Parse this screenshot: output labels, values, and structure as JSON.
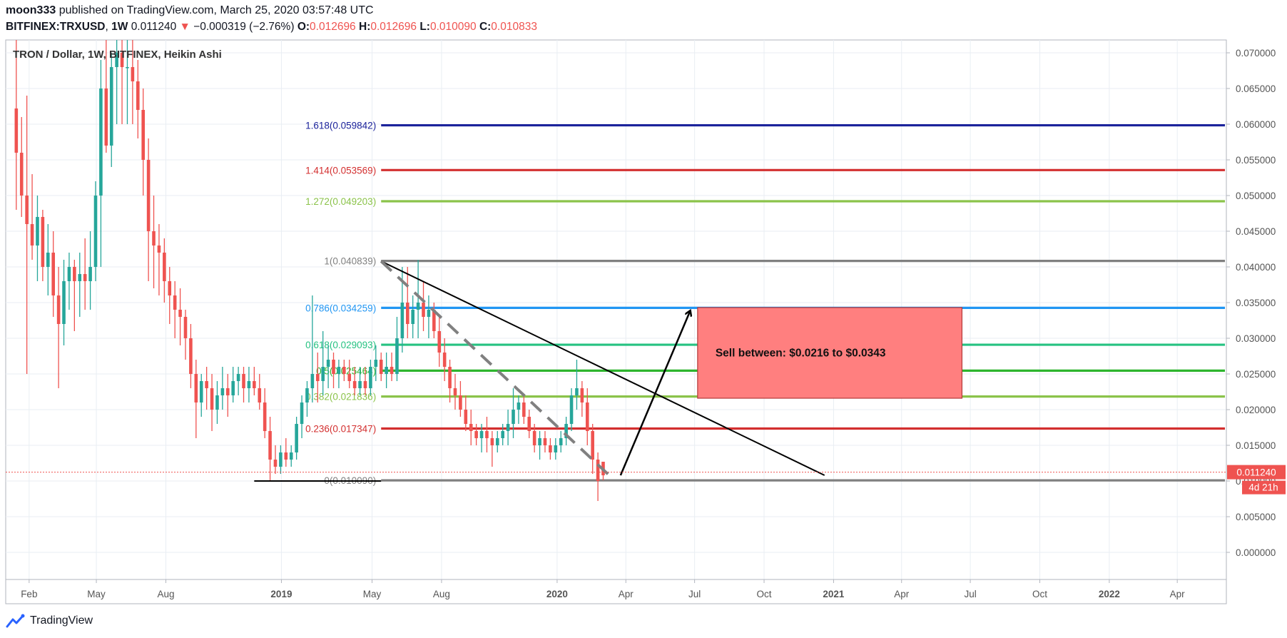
{
  "header": {
    "author": "moon333",
    "published_text": "published on TradingView.com, March 25, 2020 03:57:48 UTC",
    "symbol": "BITFINEX:TRXUSD",
    "interval": "1W",
    "last": "0.011240",
    "change_arrow": "▼",
    "change": "−0.000319 (−2.76%)",
    "o_label": "O:",
    "o": "0.012696",
    "h_label": "H:",
    "h": "0.012696",
    "l_label": "L:",
    "l": "0.010090",
    "c_label": "C:",
    "c": "0.010833"
  },
  "chart_title": "TRON / Dollar, 1W, BITFINEX, Heikin Ashi",
  "footer": {
    "brand": "TradingView"
  },
  "colors": {
    "up": "#26a69a",
    "down": "#ef5350",
    "grid": "#e9eef3",
    "axis_text": "#555555",
    "zone_fill": "#ff7f7f"
  },
  "chart_data": {
    "type": "candlestick",
    "title": "TRON / Dollar, 1W, BITFINEX, Heikin Ashi",
    "x_axis": {
      "start": "2018-01-01",
      "end": "2022-06-05",
      "ticks": [
        {
          "label": "Feb",
          "date": "2018-02-01",
          "bold": false
        },
        {
          "label": "May",
          "date": "2018-05-01",
          "bold": false
        },
        {
          "label": "Aug",
          "date": "2018-08-01",
          "bold": false
        },
        {
          "label": "2019",
          "date": "2019-01-01",
          "bold": true
        },
        {
          "label": "May",
          "date": "2019-05-01",
          "bold": false
        },
        {
          "label": "Aug",
          "date": "2019-08-01",
          "bold": false
        },
        {
          "label": "2020",
          "date": "2020-01-01",
          "bold": true
        },
        {
          "label": "Apr",
          "date": "2020-04-01",
          "bold": false
        },
        {
          "label": "Jul",
          "date": "2020-07-01",
          "bold": false
        },
        {
          "label": "Oct",
          "date": "2020-10-01",
          "bold": false
        },
        {
          "label": "2021",
          "date": "2021-01-01",
          "bold": true
        },
        {
          "label": "Apr",
          "date": "2021-04-01",
          "bold": false
        },
        {
          "label": "Jul",
          "date": "2021-07-01",
          "bold": false
        },
        {
          "label": "Oct",
          "date": "2021-10-01",
          "bold": false
        },
        {
          "label": "2022",
          "date": "2022-01-01",
          "bold": true
        },
        {
          "label": "Apr",
          "date": "2022-04-01",
          "bold": false
        }
      ]
    },
    "y_axis": {
      "range": [
        -0.0038,
        0.0718
      ],
      "ticks": [
        "0.070000",
        "0.065000",
        "0.060000",
        "0.055000",
        "0.050000",
        "0.045000",
        "0.040000",
        "0.035000",
        "0.030000",
        "0.025000",
        "0.020000",
        "0.015000",
        "0.010000",
        "0.005000",
        "0.000000"
      ]
    },
    "current_price": {
      "value": 0.01124,
      "label": "0.011240",
      "countdown": "4d 21h"
    },
    "grid": true,
    "first_candle_date": "2018-01-15",
    "candles": [
      [
        0.0622,
        0.072,
        0.048,
        0.056
      ],
      [
        0.056,
        0.061,
        0.047,
        0.05
      ],
      [
        0.05,
        0.064,
        0.025,
        0.046
      ],
      [
        0.046,
        0.053,
        0.041,
        0.043
      ],
      [
        0.043,
        0.05,
        0.038,
        0.047
      ],
      [
        0.047,
        0.048,
        0.038,
        0.04
      ],
      [
        0.04,
        0.046,
        0.036,
        0.042
      ],
      [
        0.042,
        0.045,
        0.033,
        0.036
      ],
      [
        0.036,
        0.04,
        0.023,
        0.032
      ],
      [
        0.032,
        0.041,
        0.029,
        0.038
      ],
      [
        0.038,
        0.042,
        0.034,
        0.04
      ],
      [
        0.04,
        0.041,
        0.031,
        0.038
      ],
      [
        0.038,
        0.042,
        0.033,
        0.039
      ],
      [
        0.039,
        0.044,
        0.034,
        0.038
      ],
      [
        0.038,
        0.045,
        0.034,
        0.04
      ],
      [
        0.04,
        0.052,
        0.038,
        0.05
      ],
      [
        0.05,
        0.069,
        0.04,
        0.065
      ],
      [
        0.065,
        0.072,
        0.056,
        0.057
      ],
      [
        0.057,
        0.07,
        0.054,
        0.068
      ],
      [
        0.068,
        0.072,
        0.06,
        0.07
      ],
      [
        0.07,
        0.072,
        0.06,
        0.068
      ],
      [
        0.068,
        0.072,
        0.06,
        0.068
      ],
      [
        0.068,
        0.072,
        0.06,
        0.066
      ],
      [
        0.066,
        0.069,
        0.058,
        0.062
      ],
      [
        0.062,
        0.065,
        0.05,
        0.055
      ],
      [
        0.055,
        0.058,
        0.038,
        0.045
      ],
      [
        0.045,
        0.05,
        0.037,
        0.043
      ],
      [
        0.043,
        0.046,
        0.036,
        0.042
      ],
      [
        0.042,
        0.044,
        0.035,
        0.038
      ],
      [
        0.038,
        0.04,
        0.032,
        0.036
      ],
      [
        0.036,
        0.038,
        0.03,
        0.034
      ],
      [
        0.034,
        0.037,
        0.029,
        0.033
      ],
      [
        0.033,
        0.034,
        0.027,
        0.03
      ],
      [
        0.03,
        0.032,
        0.023,
        0.025
      ],
      [
        0.025,
        0.027,
        0.016,
        0.021
      ],
      [
        0.021,
        0.025,
        0.019,
        0.024
      ],
      [
        0.024,
        0.026,
        0.02,
        0.023
      ],
      [
        0.023,
        0.025,
        0.017,
        0.02
      ],
      [
        0.02,
        0.024,
        0.018,
        0.022
      ],
      [
        0.022,
        0.026,
        0.02,
        0.023
      ],
      [
        0.023,
        0.025,
        0.019,
        0.022
      ],
      [
        0.022,
        0.026,
        0.021,
        0.024
      ],
      [
        0.024,
        0.026,
        0.022,
        0.025
      ],
      [
        0.025,
        0.026,
        0.021,
        0.023
      ],
      [
        0.023,
        0.026,
        0.021,
        0.024
      ],
      [
        0.024,
        0.026,
        0.022,
        0.023
      ],
      [
        0.023,
        0.025,
        0.02,
        0.021
      ],
      [
        0.021,
        0.023,
        0.016,
        0.017
      ],
      [
        0.017,
        0.019,
        0.01,
        0.013
      ],
      [
        0.013,
        0.015,
        0.011,
        0.012
      ],
      [
        0.012,
        0.015,
        0.011,
        0.014
      ],
      [
        0.014,
        0.016,
        0.012,
        0.013
      ],
      [
        0.013,
        0.015,
        0.012,
        0.014
      ],
      [
        0.014,
        0.019,
        0.013,
        0.018
      ],
      [
        0.018,
        0.022,
        0.016,
        0.021
      ],
      [
        0.021,
        0.024,
        0.019,
        0.023
      ],
      [
        0.023,
        0.036,
        0.021,
        0.025
      ],
      [
        0.025,
        0.028,
        0.021,
        0.024
      ],
      [
        0.024,
        0.031,
        0.022,
        0.026
      ],
      [
        0.026,
        0.029,
        0.023,
        0.027
      ],
      [
        0.027,
        0.028,
        0.023,
        0.025
      ],
      [
        0.025,
        0.027,
        0.023,
        0.026
      ],
      [
        0.026,
        0.027,
        0.024,
        0.025
      ],
      [
        0.025,
        0.027,
        0.023,
        0.024
      ],
      [
        0.024,
        0.026,
        0.022,
        0.023
      ],
      [
        0.023,
        0.026,
        0.022,
        0.024
      ],
      [
        0.024,
        0.026,
        0.022,
        0.023
      ],
      [
        0.023,
        0.027,
        0.022,
        0.026
      ],
      [
        0.026,
        0.029,
        0.024,
        0.027
      ],
      [
        0.027,
        0.028,
        0.024,
        0.025
      ],
      [
        0.025,
        0.028,
        0.023,
        0.026
      ],
      [
        0.026,
        0.028,
        0.024,
        0.025
      ],
      [
        0.025,
        0.033,
        0.024,
        0.03
      ],
      [
        0.03,
        0.04,
        0.028,
        0.035
      ],
      [
        0.035,
        0.04,
        0.03,
        0.032
      ],
      [
        0.032,
        0.036,
        0.03,
        0.034
      ],
      [
        0.034,
        0.041,
        0.03,
        0.035
      ],
      [
        0.035,
        0.038,
        0.031,
        0.033
      ],
      [
        0.033,
        0.036,
        0.03,
        0.034
      ],
      [
        0.034,
        0.035,
        0.03,
        0.031
      ],
      [
        0.031,
        0.033,
        0.026,
        0.028
      ],
      [
        0.028,
        0.03,
        0.024,
        0.026
      ],
      [
        0.026,
        0.027,
        0.021,
        0.023
      ],
      [
        0.023,
        0.025,
        0.02,
        0.022
      ],
      [
        0.022,
        0.024,
        0.019,
        0.02
      ],
      [
        0.02,
        0.022,
        0.017,
        0.018
      ],
      [
        0.018,
        0.02,
        0.015,
        0.017
      ],
      [
        0.017,
        0.018,
        0.015,
        0.016
      ],
      [
        0.016,
        0.018,
        0.014,
        0.017
      ],
      [
        0.017,
        0.019,
        0.014,
        0.016
      ],
      [
        0.016,
        0.017,
        0.012,
        0.015
      ],
      [
        0.015,
        0.017,
        0.014,
        0.016
      ],
      [
        0.016,
        0.018,
        0.015,
        0.017
      ],
      [
        0.017,
        0.02,
        0.015,
        0.018
      ],
      [
        0.018,
        0.023,
        0.016,
        0.02
      ],
      [
        0.02,
        0.022,
        0.018,
        0.021
      ],
      [
        0.021,
        0.022,
        0.018,
        0.019
      ],
      [
        0.019,
        0.02,
        0.016,
        0.017
      ],
      [
        0.017,
        0.018,
        0.014,
        0.015
      ],
      [
        0.015,
        0.017,
        0.013,
        0.016
      ],
      [
        0.016,
        0.017,
        0.014,
        0.015
      ],
      [
        0.015,
        0.016,
        0.013,
        0.014
      ],
      [
        0.014,
        0.016,
        0.013,
        0.015
      ],
      [
        0.015,
        0.017,
        0.014,
        0.016
      ],
      [
        0.016,
        0.019,
        0.015,
        0.018
      ],
      [
        0.018,
        0.023,
        0.017,
        0.022
      ],
      [
        0.022,
        0.027,
        0.02,
        0.023
      ],
      [
        0.023,
        0.024,
        0.019,
        0.021
      ],
      [
        0.021,
        0.023,
        0.015,
        0.017
      ],
      [
        0.017,
        0.018,
        0.011,
        0.013
      ],
      [
        0.013,
        0.014,
        0.0072,
        0.01
      ],
      [
        0.0127,
        0.0127,
        0.0101,
        0.0108
      ]
    ],
    "fib_levels": [
      {
        "ratio": "1.618",
        "label": "1.618(0.059842)",
        "value": 0.059842,
        "color": "#1c239b"
      },
      {
        "ratio": "1.414",
        "label": "1.414(0.053569)",
        "value": 0.053569,
        "color": "#d32f2f"
      },
      {
        "ratio": "1.272",
        "label": "1.272(0.049203)",
        "value": 0.049203,
        "color": "#8bc34a"
      },
      {
        "ratio": "1",
        "label": "1(0.040839)",
        "value": 0.040839,
        "color": "#808080"
      },
      {
        "ratio": "0.786",
        "label": "0.786(0.034259)",
        "value": 0.034259,
        "color": "#2196f3"
      },
      {
        "ratio": "0.618",
        "label": "0.618(0.029093)",
        "value": 0.029093,
        "color": "#26c281"
      },
      {
        "ratio": "0.5",
        "label": "0.5(0.025464)",
        "value": 0.025464,
        "color": "#2db52d"
      },
      {
        "ratio": "0.382",
        "label": "0.382(0.021836)",
        "value": 0.021836,
        "color": "#8bc34a"
      },
      {
        "ratio": "0.236",
        "label": "0.236(0.017347)",
        "value": 0.017347,
        "color": "#d32f2f"
      },
      {
        "ratio": "0",
        "label": "0(0.010090)",
        "value": 0.01009,
        "color": "#808080"
      }
    ],
    "fib_start_date": "2019-05-13",
    "annotations": {
      "sell_zone": {
        "text": "Sell between: $0.0216 to $0.0343",
        "from_date": "2020-07-05",
        "to_date": "2021-06-20",
        "low": 0.0216,
        "high": 0.0343
      },
      "trend_line": {
        "from": [
          "2019-05-13",
          0.0408
        ],
        "to": [
          "2020-12-20",
          0.0108
        ]
      },
      "dashed_line": {
        "from": [
          "2019-05-13",
          0.0408
        ],
        "to": [
          "2020-03-15",
          0.0103
        ]
      },
      "arrow": {
        "from": [
          "2020-03-25",
          0.0108
        ],
        "to": [
          "2020-06-25",
          0.0338
        ]
      },
      "base_line": {
        "from": [
          "2018-11-26",
          0.01
        ],
        "to": [
          "2019-05-13",
          0.01
        ]
      }
    }
  }
}
